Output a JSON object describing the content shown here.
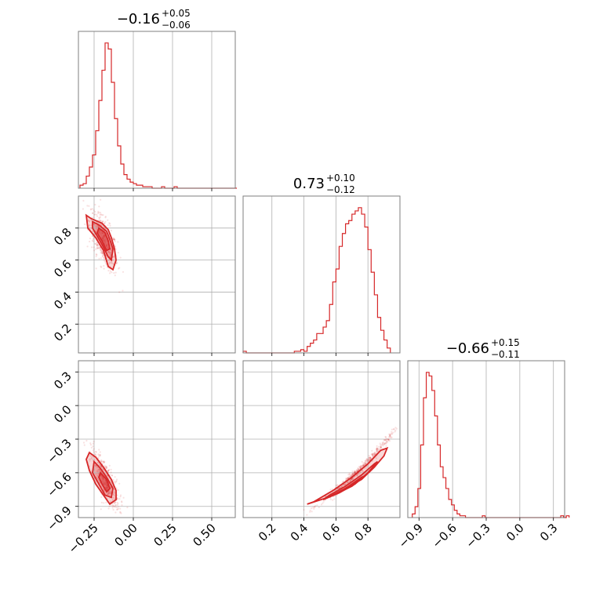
{
  "chart_data": {
    "type": "corner",
    "color": "#d62728",
    "params": [
      {
        "median": -0.16,
        "title_main": "−0.16",
        "title_plus": "+0.05",
        "title_minus": "−0.06",
        "range": [
          -0.35,
          0.65
        ],
        "ticks": [
          -0.25,
          0.0,
          0.25,
          0.5
        ],
        "tick_labels": [
          "−0.25",
          "0.00",
          "0.25",
          "0.50"
        ],
        "hist_edges_start": -0.34,
        "hist_step": 0.02,
        "hist_counts": [
          2,
          3,
          8,
          14,
          22,
          38,
          58,
          78,
          96,
          92,
          70,
          46,
          28,
          16,
          9,
          6,
          4,
          3,
          2,
          2,
          1,
          1,
          1,
          0,
          0,
          0,
          1,
          0,
          0,
          0,
          1,
          0,
          0,
          0,
          0,
          0,
          0,
          0,
          0,
          0,
          0,
          0,
          0,
          0,
          0,
          0,
          0,
          0,
          0,
          0
        ]
      },
      {
        "median": 0.73,
        "title_main": "0.73",
        "title_plus": "+0.10",
        "title_minus": "−0.12",
        "range": [
          0.02,
          1.0
        ],
        "ticks": [
          0.2,
          0.4,
          0.6,
          0.8
        ],
        "tick_labels": [
          "0.2",
          "0.4",
          "0.6",
          "0.8"
        ],
        "hist_edges_start": 0.02,
        "hist_step": 0.02,
        "hist_counts": [
          1,
          0,
          0,
          0,
          0,
          0,
          0,
          0,
          0,
          0,
          0,
          0,
          0,
          0,
          0,
          0,
          1,
          1,
          2,
          1,
          4,
          6,
          8,
          12,
          12,
          16,
          20,
          30,
          44,
          52,
          66,
          74,
          80,
          82,
          86,
          88,
          90,
          86,
          78,
          64,
          50,
          36,
          22,
          14,
          8,
          3
        ]
      },
      {
        "median": -0.66,
        "title_main": "−0.66",
        "title_plus": "+0.15",
        "title_minus": "−0.11",
        "range": [
          -1.0,
          0.4
        ],
        "ticks": [
          -0.9,
          -0.6,
          -0.3,
          0.0,
          0.3
        ],
        "tick_labels": [
          "−0.9",
          "−0.6",
          "−0.3",
          "0.0",
          "0.3"
        ],
        "hist_edges_start": -0.96,
        "hist_step": 0.025,
        "hist_counts": [
          2,
          6,
          16,
          40,
          66,
          80,
          78,
          70,
          56,
          40,
          28,
          22,
          16,
          10,
          7,
          4,
          2,
          1,
          1,
          0,
          0,
          0,
          0,
          0,
          0,
          1,
          0,
          0,
          0,
          0,
          0,
          0,
          0,
          0,
          0,
          0,
          0,
          0,
          0,
          0,
          0,
          0,
          0,
          0,
          0,
          0,
          0,
          0,
          0,
          0,
          0,
          0,
          0,
          1,
          0,
          1
        ]
      }
    ],
    "panel_1_0": {
      "contours": [
        [
          [
            -0.3,
            0.88
          ],
          [
            -0.27,
            0.86
          ],
          [
            -0.2,
            0.83
          ],
          [
            -0.16,
            0.79
          ],
          [
            -0.14,
            0.74
          ],
          [
            -0.12,
            0.67
          ],
          [
            -0.11,
            0.6
          ],
          [
            -0.13,
            0.54
          ],
          [
            -0.16,
            0.56
          ],
          [
            -0.19,
            0.66
          ],
          [
            -0.24,
            0.74
          ],
          [
            -0.29,
            0.8
          ]
        ],
        [
          [
            -0.26,
            0.84
          ],
          [
            -0.22,
            0.82
          ],
          [
            -0.17,
            0.78
          ],
          [
            -0.15,
            0.73
          ],
          [
            -0.13,
            0.67
          ],
          [
            -0.14,
            0.6
          ],
          [
            -0.16,
            0.62
          ],
          [
            -0.19,
            0.68
          ],
          [
            -0.23,
            0.75
          ],
          [
            -0.26,
            0.8
          ]
        ],
        [
          [
            -0.22,
            0.8
          ],
          [
            -0.18,
            0.77
          ],
          [
            -0.16,
            0.72
          ],
          [
            -0.15,
            0.67
          ],
          [
            -0.17,
            0.66
          ],
          [
            -0.2,
            0.72
          ],
          [
            -0.23,
            0.77
          ]
        ]
      ]
    },
    "panel_2_0": {
      "contours": [
        [
          [
            -0.28,
            -0.42
          ],
          [
            -0.24,
            -0.46
          ],
          [
            -0.19,
            -0.55
          ],
          [
            -0.14,
            -0.66
          ],
          [
            -0.11,
            -0.76
          ],
          [
            -0.11,
            -0.84
          ],
          [
            -0.15,
            -0.88
          ],
          [
            -0.19,
            -0.8
          ],
          [
            -0.24,
            -0.7
          ],
          [
            -0.28,
            -0.58
          ],
          [
            -0.3,
            -0.48
          ]
        ],
        [
          [
            -0.25,
            -0.5
          ],
          [
            -0.21,
            -0.56
          ],
          [
            -0.17,
            -0.64
          ],
          [
            -0.13,
            -0.74
          ],
          [
            -0.14,
            -0.82
          ],
          [
            -0.18,
            -0.8
          ],
          [
            -0.22,
            -0.7
          ],
          [
            -0.26,
            -0.6
          ]
        ],
        [
          [
            -0.21,
            -0.6
          ],
          [
            -0.17,
            -0.66
          ],
          [
            -0.15,
            -0.74
          ],
          [
            -0.17,
            -0.77
          ],
          [
            -0.2,
            -0.7
          ],
          [
            -0.22,
            -0.64
          ]
        ]
      ]
    },
    "panel_2_1": {
      "contours": [
        [
          [
            0.42,
            -0.88
          ],
          [
            0.55,
            -0.82
          ],
          [
            0.66,
            -0.74
          ],
          [
            0.76,
            -0.66
          ],
          [
            0.84,
            -0.55
          ],
          [
            0.9,
            -0.45
          ],
          [
            0.92,
            -0.38
          ],
          [
            0.88,
            -0.4
          ],
          [
            0.8,
            -0.52
          ],
          [
            0.7,
            -0.64
          ],
          [
            0.58,
            -0.76
          ],
          [
            0.46,
            -0.86
          ]
        ],
        [
          [
            0.52,
            -0.84
          ],
          [
            0.62,
            -0.78
          ],
          [
            0.72,
            -0.7
          ],
          [
            0.8,
            -0.6
          ],
          [
            0.86,
            -0.5
          ],
          [
            0.84,
            -0.52
          ],
          [
            0.76,
            -0.62
          ],
          [
            0.66,
            -0.72
          ],
          [
            0.56,
            -0.8
          ]
        ],
        [
          [
            0.6,
            -0.79
          ],
          [
            0.7,
            -0.72
          ],
          [
            0.78,
            -0.63
          ],
          [
            0.76,
            -0.64
          ],
          [
            0.68,
            -0.72
          ]
        ]
      ]
    }
  }
}
